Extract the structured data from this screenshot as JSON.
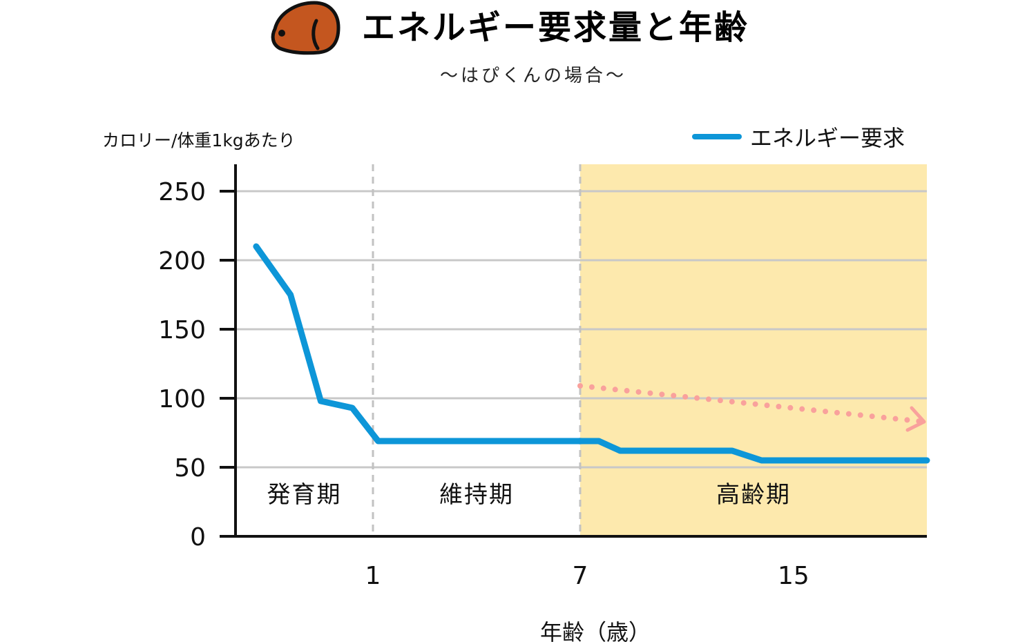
{
  "chart_data": {
    "type": "line",
    "title": "エネルギー要求量と年齢",
    "subtitle": "〜はぴくんの場合〜",
    "ylabel": "カロリー/体重1kgあたり",
    "xlabel": "年齢（歳）",
    "ylim": [
      0,
      250
    ],
    "yticks": [
      0,
      50,
      100,
      150,
      200,
      250
    ],
    "xticks": [
      {
        "label": "1",
        "x": 1
      },
      {
        "label": "7",
        "x": 7
      },
      {
        "label": "15",
        "x": 15
      }
    ],
    "legend": {
      "label": "エネルギー要求",
      "placement": "top-right"
    },
    "phases": [
      {
        "label": "発育期",
        "x_start": 0,
        "x_end": 1,
        "highlight": false
      },
      {
        "label": "維持期",
        "x_start": 1,
        "x_end": 7,
        "highlight": false
      },
      {
        "label": "高齢期",
        "x_start": 7,
        "x_end": 20,
        "highlight": true,
        "color": "#fde9ad"
      }
    ],
    "series": [
      {
        "name": "エネルギー要求",
        "color": "#0d96d8",
        "points": [
          {
            "x": 0.15,
            "y": 210
          },
          {
            "x": 0.4,
            "y": 175
          },
          {
            "x": 0.62,
            "y": 98
          },
          {
            "x": 0.85,
            "y": 93
          },
          {
            "x": 1.15,
            "y": 69
          },
          {
            "x": 7.7,
            "y": 69
          },
          {
            "x": 8.5,
            "y": 62
          },
          {
            "x": 12.7,
            "y": 62
          },
          {
            "x": 13.8,
            "y": 55
          },
          {
            "x": 20,
            "y": 55
          }
        ]
      }
    ],
    "trend": {
      "color": "#f9a19c",
      "from": {
        "x": 7,
        "y": 109
      },
      "to": {
        "x": 20,
        "y": 83
      }
    },
    "grid": true,
    "colors": {
      "grid": "#c8c8c8",
      "axis": "#111111",
      "dog": "#c4561f"
    }
  }
}
